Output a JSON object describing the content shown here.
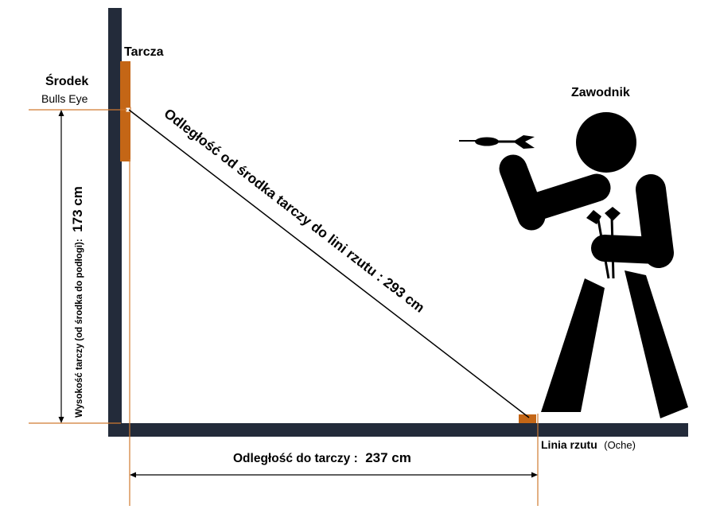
{
  "labels": {
    "board": "Tarcza",
    "center_title": "Środek",
    "center_subtitle": "Bulls Eye",
    "player": "Zawodnik",
    "diagonal": "Odległość od środka tarczy do lini rzutu : 293 cm",
    "height_small": "Wysokość tarczy (od środka do podłogi):",
    "height_value": "173 cm",
    "distance_label": "Odległość do tarczy :",
    "distance_value": "237 cm",
    "oche_bold": "Linia rzutu",
    "oche_normal": "(Oche)"
  },
  "colors": {
    "wall": "#232b3a",
    "accent": "#c46616",
    "line": "#000000",
    "guide": "#d07a30",
    "player": "#000000"
  },
  "measurements": {
    "board_height_cm": 173,
    "throw_distance_cm": 237,
    "diagonal_cm": 293
  }
}
